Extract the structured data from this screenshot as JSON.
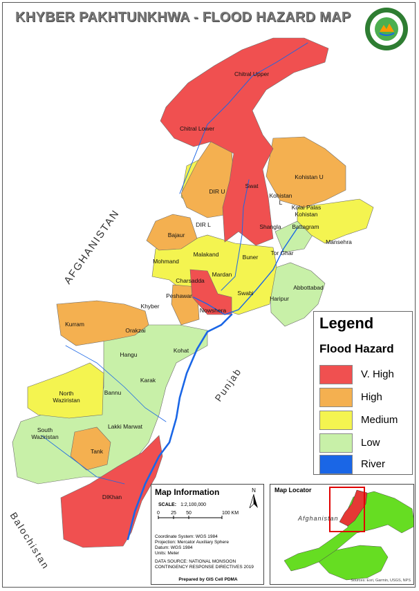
{
  "title": "KHYBER PAKHTUNKHWA - FLOOD HAZARD MAP",
  "logo": {
    "text_top": "Khyber Pakhtunkhwa",
    "text_bottom": "PDMA-PAKISTAN"
  },
  "colors": {
    "v_high": "#f05050",
    "high": "#f4b050",
    "medium": "#f4f450",
    "low": "#c8f0a8",
    "river": "#1a66e6"
  },
  "regions": {
    "afghanistan": "AFGHANISTAN",
    "punjab": "Punjab",
    "balochistan": "Balochistan"
  },
  "districts": {
    "chitral_upper": "Chitral Upper",
    "chitral_lower": "Chitral Lower",
    "dir_u": "DIR U",
    "dir_l": "DIR L",
    "swat": "Swat",
    "kohistan_u": "Kohistan U",
    "kohistan_l1": "Kohistan",
    "kohistan_l2": "L",
    "kolai_palas1": "Kolai Palas",
    "kolai_palas2": "Kohistan",
    "shangla": "Shangla",
    "battagram": "Battagram",
    "bajaur": "Bajaur",
    "mansehra": "Mansehra",
    "malakand": "Malakand",
    "tor_ghar": "Tor Ghar",
    "buner": "Buner",
    "mohmand": "Mohmand",
    "charsadda": "Charsadda",
    "mardan": "Mardan",
    "abbottabad": "Abbottabad",
    "peshawar": "Peshawar",
    "swabi": "Swabi",
    "haripur": "Haripur",
    "khyber": "Khyber",
    "nowshera": "Nowshera",
    "kurram": "Kurram",
    "orakzai": "Orakzai",
    "kohat": "Kohat",
    "hangu": "Hangu",
    "karak": "Karak",
    "north_waziristan1": "North",
    "north_waziristan2": "Waziristan",
    "bannu": "Bannu",
    "lakki_marwat": "Lakki Marwat",
    "south_waziristan1": "South",
    "south_waziristan2": "Waziristan",
    "tank": "Tank",
    "dikhan": "DIKhan"
  },
  "legend": {
    "title": "Legend",
    "subtitle": "Flood Hazard",
    "items": [
      {
        "label": "V. High",
        "color": "#f05050"
      },
      {
        "label": "High",
        "color": "#f4b050"
      },
      {
        "label": "Medium",
        "color": "#f4f450"
      },
      {
        "label": "Low",
        "color": "#c8f0a8"
      },
      {
        "label": "River",
        "color": "#1a66e6"
      }
    ]
  },
  "map_info": {
    "title": "Map Information",
    "scale_label": "SCALE:",
    "scale_value": "1:2,100,000",
    "north": "N",
    "scalebar": {
      "t0": "0",
      "t1": "25",
      "t2": "50",
      "t3": "100 KM"
    },
    "coord": "Coordinate System: WGS 1984",
    "projection": "Projection: Mercator Auxiliary Sphere",
    "datum": "Datum: WGS 1984",
    "units": "Units: Meter",
    "source1": "DATA SOURCE: NATIONAL MONSOON",
    "source2": "CONTINGENCY RESPONSE DIRECTIVES 2019",
    "prepared": "Prepared by GIS Cell PDMA"
  },
  "locator": {
    "title": "Map Locator",
    "afghanistan": "Afghanistan",
    "source": "Sources: Esri, Garmin, USGS, NPS"
  }
}
